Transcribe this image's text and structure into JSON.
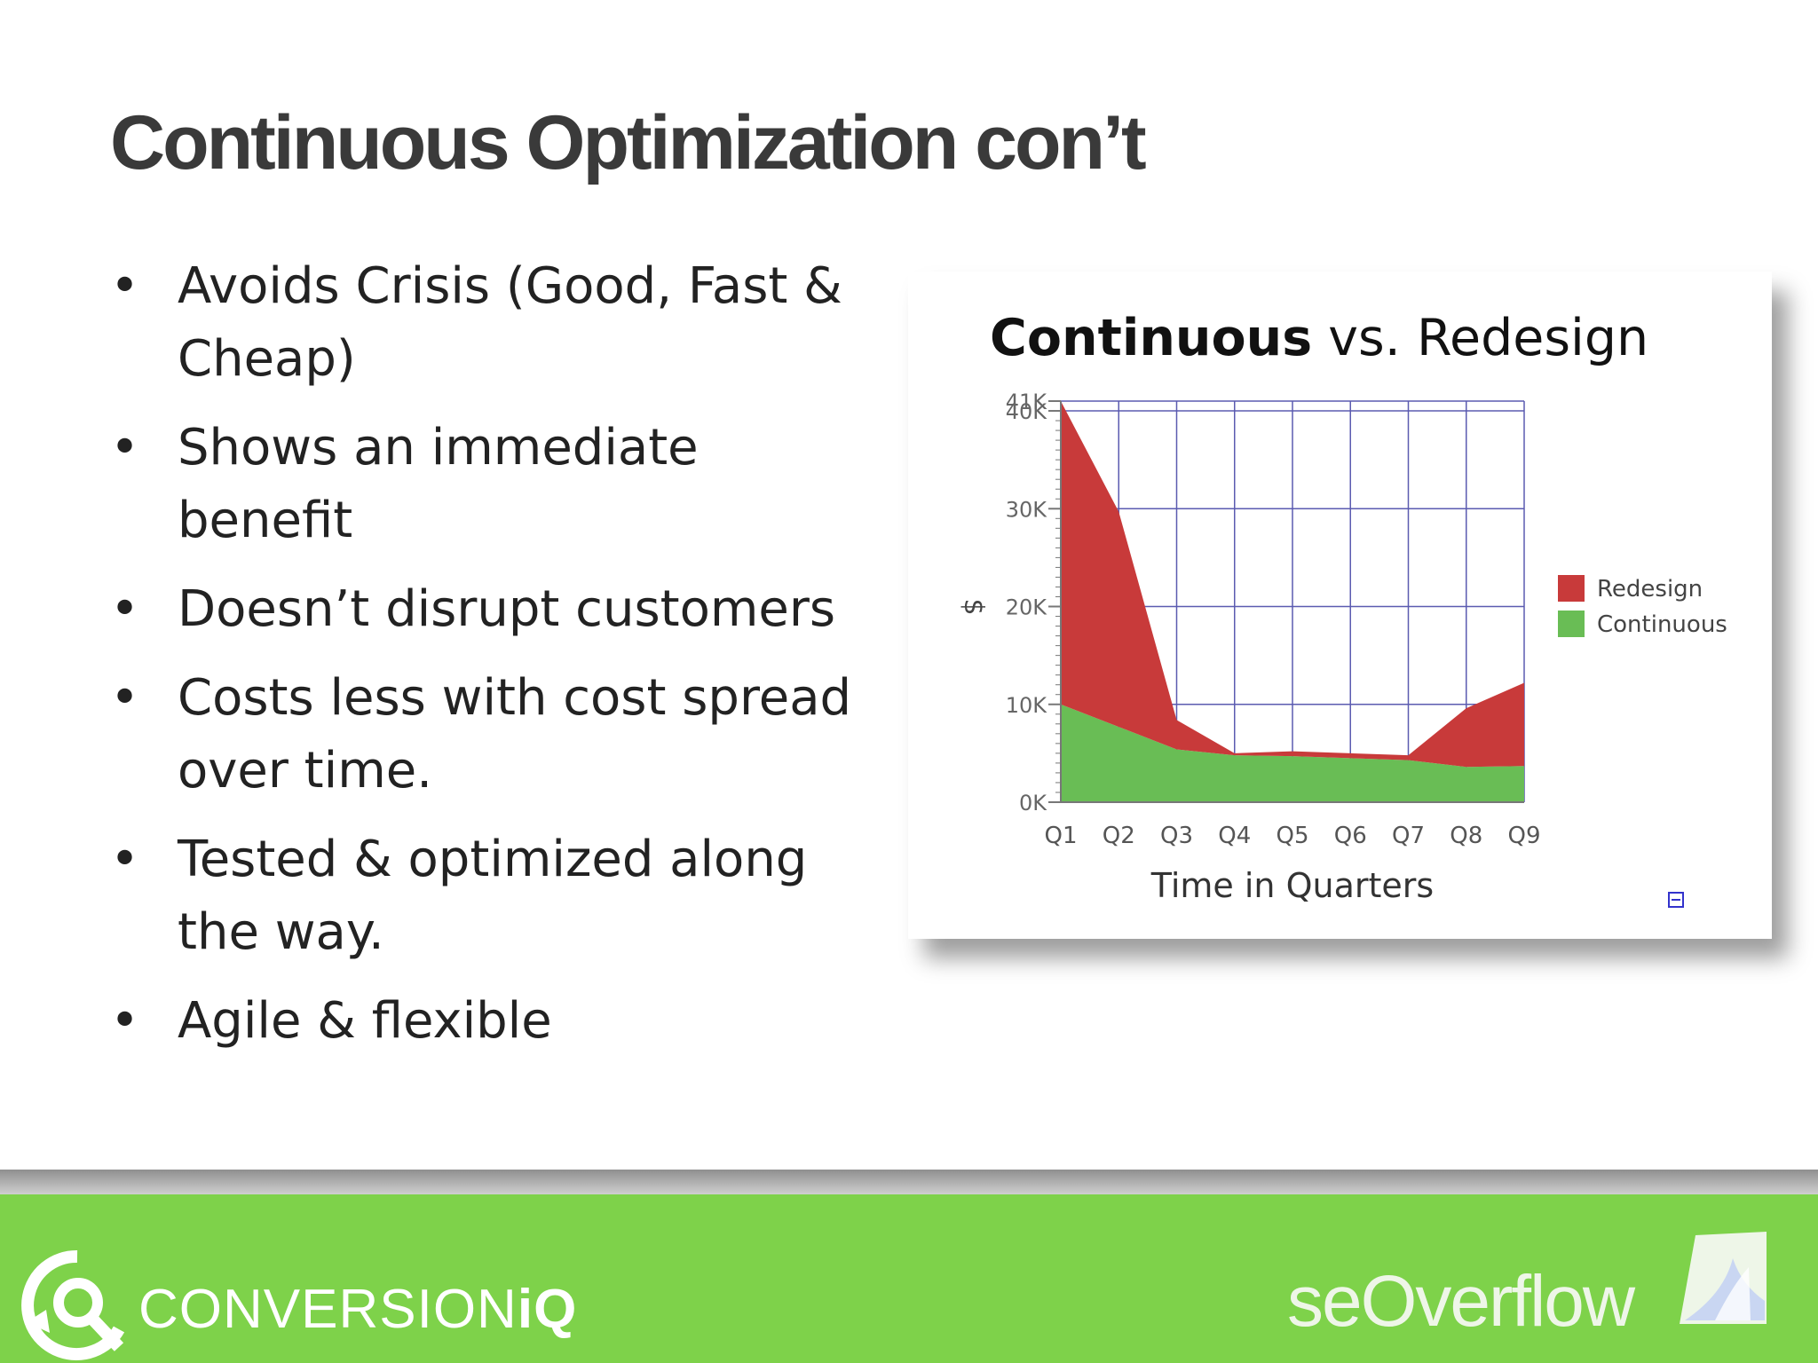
{
  "slide": {
    "title": "Continuous Optimization con’t",
    "bullet_glyph": "•",
    "bullets": [
      "Avoids Crisis (Good, Fast & Cheap)",
      "Shows an immediate benefit",
      "Doesn’t disrupt customers",
      "Costs less with cost spread over time.",
      "Tested & optimized along the way.",
      "Agile & flexible"
    ]
  },
  "chart_data": {
    "type": "area",
    "title_bold": "Continuous",
    "title_rest": " vs. Redesign",
    "xlabel": "Time in Quarters",
    "ylabel": "$",
    "categories": [
      "Q1",
      "Q2",
      "Q3",
      "Q4",
      "Q5",
      "Q6",
      "Q7",
      "Q8",
      "Q9"
    ],
    "y_tick_values": [
      0,
      10000,
      20000,
      30000,
      40000,
      41000
    ],
    "y_tick_labels": [
      "0K",
      "10K",
      "20K",
      "30K",
      "40K",
      "41K"
    ],
    "ylim": [
      0,
      41000
    ],
    "grid": true,
    "stacked": true,
    "legend_position": "right",
    "series": [
      {
        "name": "Redesign",
        "color": "#c83a3a",
        "values": [
          31000,
          22000,
          3000,
          200,
          500,
          500,
          500,
          6000,
          8500
        ]
      },
      {
        "name": "Continuous",
        "color": "#69bd55",
        "values": [
          10000,
          7700,
          5400,
          4800,
          4700,
          4500,
          4300,
          3600,
          3700
        ]
      }
    ],
    "corner_icon": "collapse-icon"
  },
  "footer": {
    "left_logo_light": "CONVERSION",
    "left_logo_bold": "iQ",
    "right_logo": "seOverflow",
    "colors": {
      "gray_bar": "#a8a8a8",
      "green_bar": "#7ed24a"
    }
  }
}
